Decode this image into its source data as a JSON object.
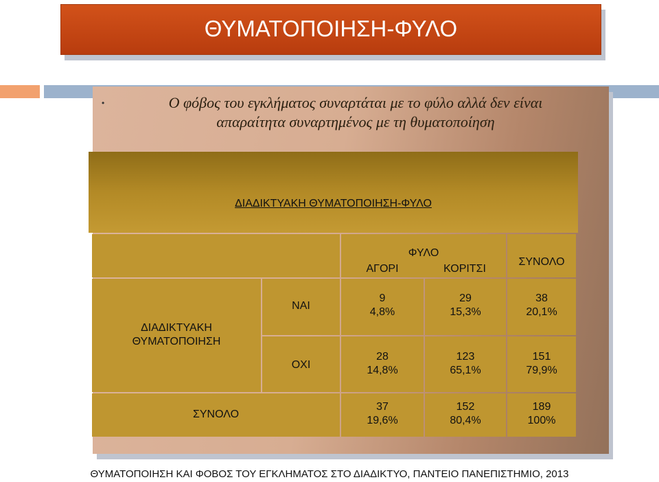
{
  "title": "ΘΥΜΑΤΟΠΟΙΗΣΗ-ΦΥΛΟ",
  "bullet": "•",
  "intro": {
    "line1": "Ο φόβος του εγκλήματος συναρτάται με το φύλο αλλά δεν είναι",
    "line2": "απαραίτητα συναρτημένος με τη θυματοποίηση"
  },
  "table": {
    "heading": "ΔΙΑΔΙΚΤΥΑΚΗ ΘΥΜΑΤΟΠΟΙΗΣΗ-ΦΥΛΟ",
    "group_header": "ΦΥΛΟ",
    "col_boys": "ΑΓΟΡΙ",
    "col_girls": "ΚΟΡΙΤΣΙ",
    "col_total": "ΣΥΝΟΛΟ",
    "row_header_line1": "ΔΙΑΔΙΚΤΥΑΚΗ",
    "row_header_line2": "ΘΥΜΑΤΟΠΟΙΗΣΗ",
    "yes": {
      "label": "ΝΑΙ",
      "boys_count": "9",
      "boys_pct": "4,8%",
      "girls_count": "29",
      "girls_pct": "15,3%",
      "total_count": "38",
      "total_pct": "20,1%"
    },
    "no": {
      "label": "ΟΧΙ",
      "boys_count": "28",
      "boys_pct": "14,8%",
      "girls_count": "123",
      "girls_pct": "65,1%",
      "total_count": "151",
      "total_pct": "79,9%"
    },
    "total": {
      "label": "ΣΥΝΟΛΟ",
      "boys_count": "37",
      "boys_pct": "19,6%",
      "girls_count": "152",
      "girls_pct": "80,4%",
      "total_count": "189",
      "total_pct": "100%"
    }
  },
  "footer": "ΘΥΜΑΤΟΠΟΙΗΣΗ ΚΑΙ ΦΟΒΟΣ ΤΟΥ ΕΓΚΛΗΜΑΤΟΣ ΣΤΟ ΔΙΑΔΙΚΤΥΟ, ΠΑΝΤΕΙΟ ΠΑΝΕΠΙΣΤΗΜΙΟ, 2013"
}
